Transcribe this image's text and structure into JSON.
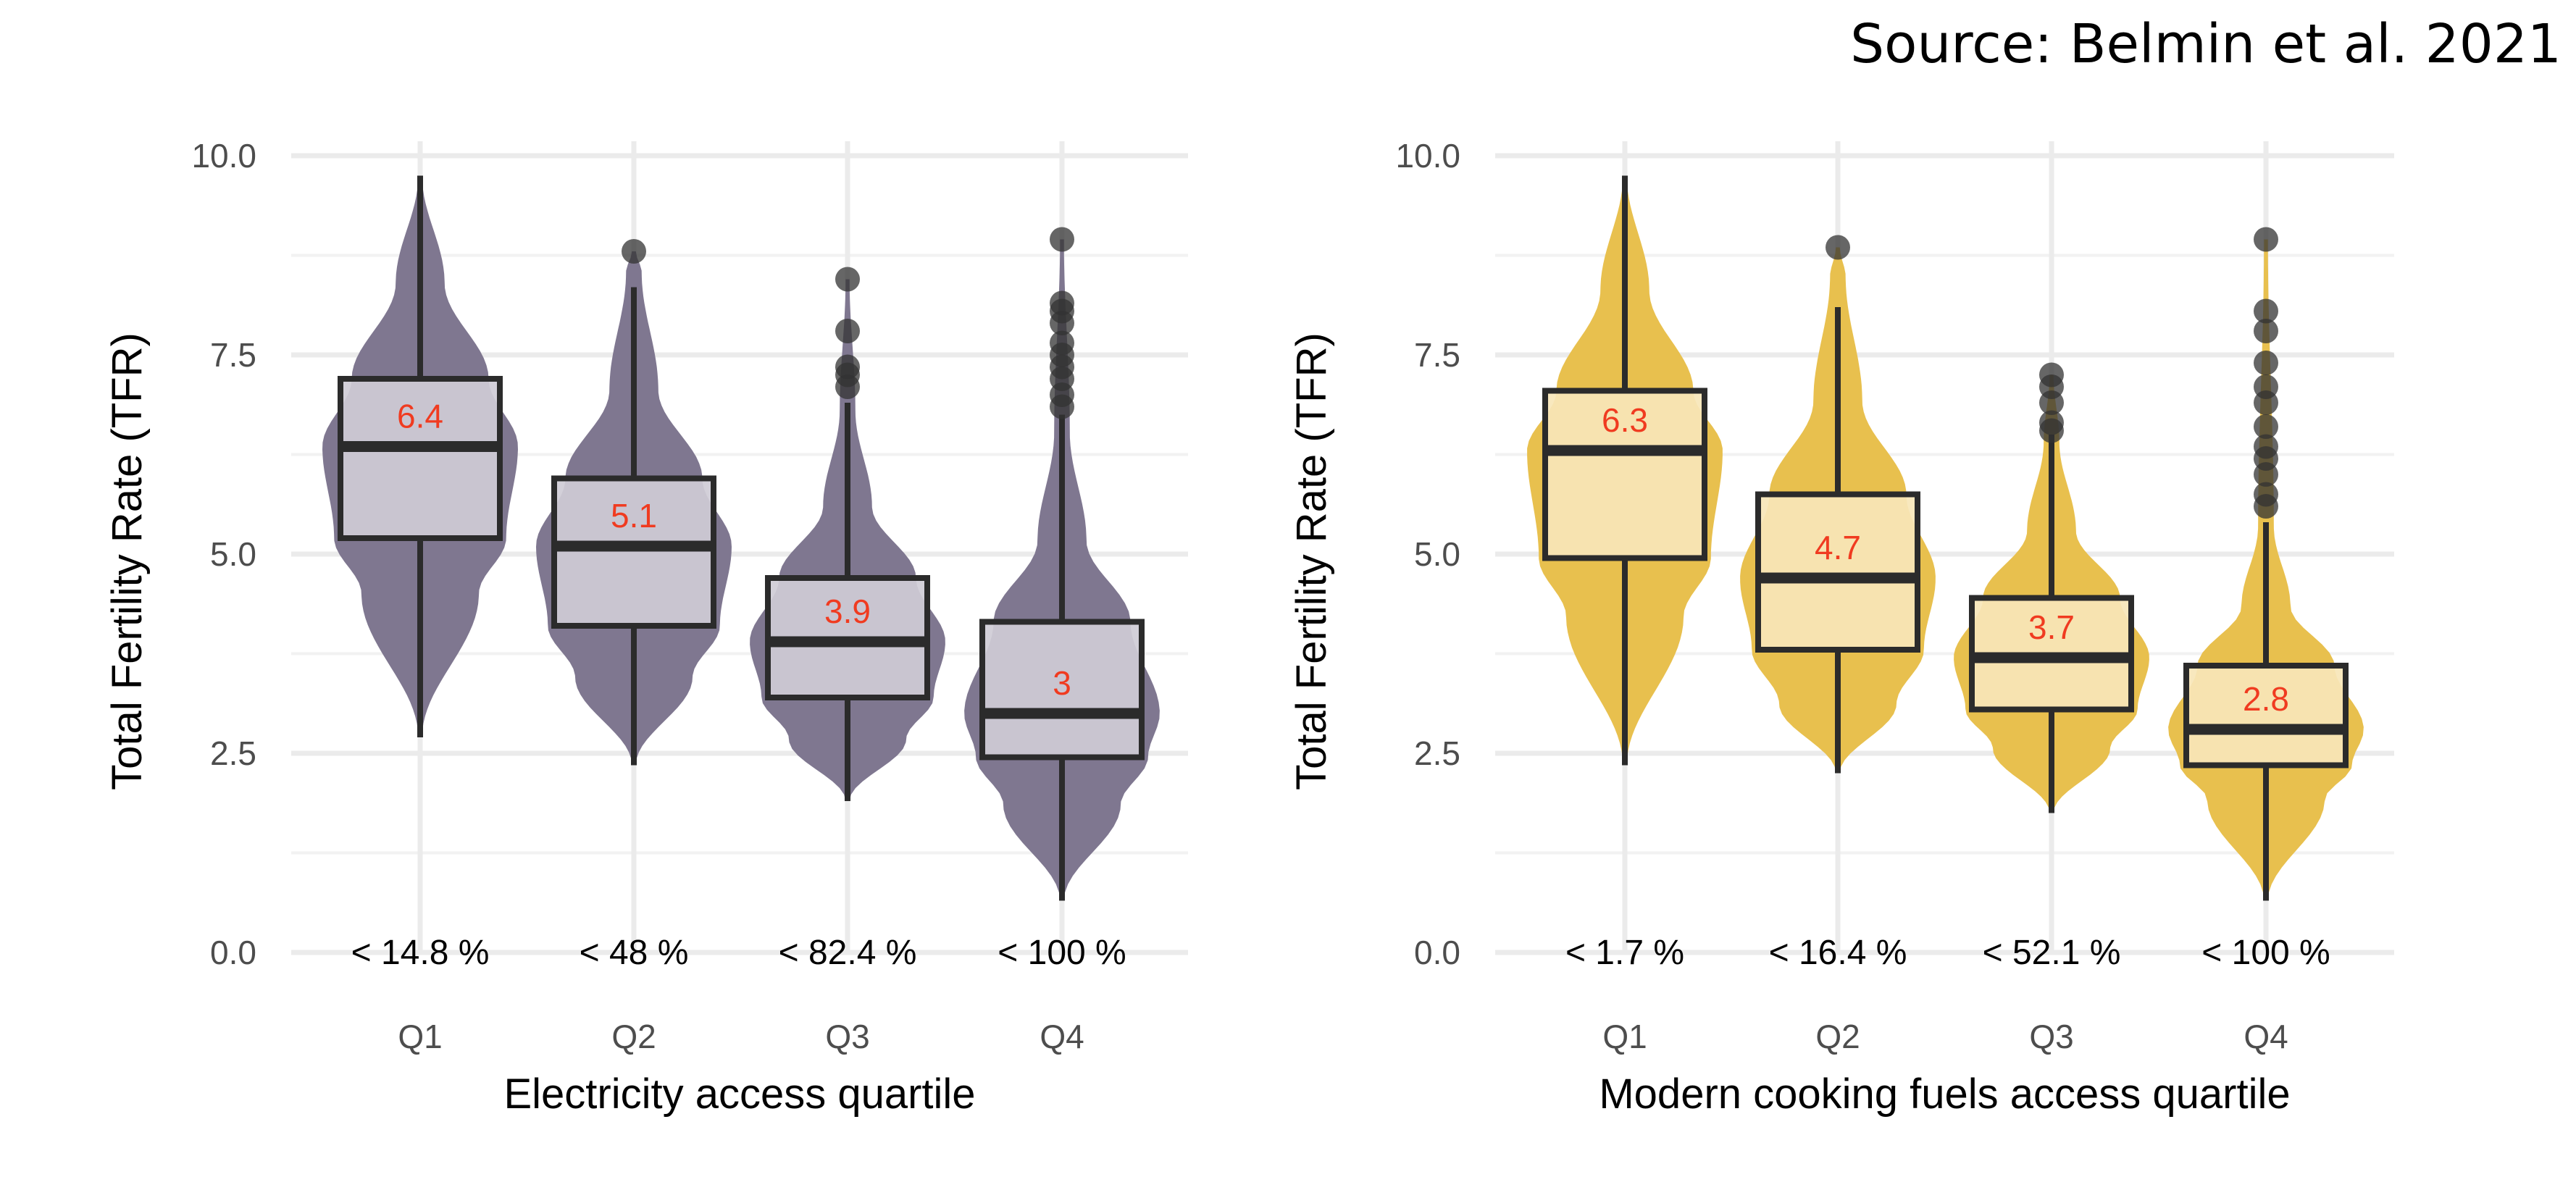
{
  "source": "Source: Belmin et al. 2021",
  "chart_data": [
    {
      "type": "violin+box",
      "ylabel": "Total Fertility Rate (TFR)",
      "xlabel": "Electricity access quartile",
      "ylim": [
        0,
        10.5
      ],
      "yticks": [
        "0.0",
        "2.5",
        "5.0",
        "7.5",
        "10.0"
      ],
      "categories": [
        "Q1",
        "Q2",
        "Q3",
        "Q4"
      ],
      "quartile_labels": [
        "< 14.8 %",
        "< 48 %",
        "< 82.4 %",
        "< 100 %"
      ],
      "violin_color": "#7f7790",
      "box_fill": "#cfccd6",
      "grid": true,
      "groups": [
        {
          "median_label": "6.4",
          "min": 2.7,
          "q1": 5.2,
          "median": 6.35,
          "q3": 7.2,
          "max": 9.75,
          "whisker_low": 2.7,
          "whisker_high": 9.75,
          "outliers": []
        },
        {
          "median_label": "5.1",
          "min": 2.35,
          "q1": 4.1,
          "median": 5.1,
          "q3": 5.95,
          "max": 8.8,
          "whisker_low": 2.35,
          "whisker_high": 8.35,
          "outliers": [
            8.8
          ]
        },
        {
          "median_label": "3.9",
          "min": 1.9,
          "q1": 3.2,
          "median": 3.9,
          "q3": 4.7,
          "max": 8.45,
          "whisker_low": 1.9,
          "whisker_high": 6.9,
          "outliers": [
            7.1,
            7.25,
            7.35,
            7.8,
            8.45
          ]
        },
        {
          "median_label": "3",
          "min": 0.65,
          "q1": 2.45,
          "median": 3.0,
          "q3": 4.15,
          "max": 8.95,
          "whisker_low": 0.65,
          "whisker_high": 6.75,
          "outliers": [
            6.85,
            7.0,
            7.2,
            7.35,
            7.5,
            7.65,
            7.9,
            8.05,
            8.15,
            8.95
          ]
        }
      ]
    },
    {
      "type": "violin+box",
      "ylabel": "Total Fertility Rate (TFR)",
      "xlabel": "Modern cooking fuels access quartile",
      "ylim": [
        0,
        10.5
      ],
      "yticks": [
        "0.0",
        "2.5",
        "5.0",
        "7.5",
        "10.0"
      ],
      "categories": [
        "Q1",
        "Q2",
        "Q3",
        "Q4"
      ],
      "quartile_labels": [
        "< 1.7 %",
        "< 16.4 %",
        "< 52.1 %",
        "< 100 %"
      ],
      "violin_color": "#e8c04e",
      "box_fill": "#f7e6b8",
      "grid": true,
      "groups": [
        {
          "median_label": "6.3",
          "min": 2.35,
          "q1": 4.95,
          "median": 6.3,
          "q3": 7.05,
          "max": 9.75,
          "whisker_low": 2.35,
          "whisker_high": 9.75,
          "outliers": []
        },
        {
          "median_label": "4.7",
          "min": 2.25,
          "q1": 3.8,
          "median": 4.7,
          "q3": 5.75,
          "max": 8.85,
          "whisker_low": 2.25,
          "whisker_high": 8.1,
          "outliers": [
            8.85
          ]
        },
        {
          "median_label": "3.7",
          "min": 1.75,
          "q1": 3.05,
          "median": 3.7,
          "q3": 4.45,
          "max": 7.25,
          "whisker_low": 1.75,
          "whisker_high": 6.5,
          "outliers": [
            6.55,
            6.65,
            6.9,
            7.1,
            7.25
          ]
        },
        {
          "median_label": "2.8",
          "min": 0.65,
          "q1": 2.35,
          "median": 2.8,
          "q3": 3.6,
          "max": 8.95,
          "whisker_low": 0.65,
          "whisker_high": 5.4,
          "outliers": [
            5.6,
            5.75,
            6.0,
            6.2,
            6.35,
            6.6,
            6.9,
            7.1,
            7.4,
            7.8,
            8.05,
            8.95
          ]
        }
      ]
    }
  ]
}
